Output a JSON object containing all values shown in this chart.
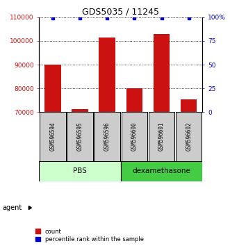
{
  "title": "GDS5035 / 11245",
  "samples": [
    "GSM596594",
    "GSM596595",
    "GSM596596",
    "GSM596600",
    "GSM596601",
    "GSM596602"
  ],
  "counts": [
    90000,
    71200,
    101500,
    80200,
    103000,
    75500
  ],
  "percentile_ranks": [
    99,
    99,
    99,
    99,
    99,
    99
  ],
  "groups": [
    {
      "label": "PBS",
      "color": "#b3ffb3",
      "darker": "#55cc55"
    },
    {
      "label": "dexamethasone",
      "color": "#55dd55",
      "darker": "#22aa22"
    }
  ],
  "bar_color": "#cc1111",
  "dot_color": "#0000cc",
  "left_ylim": [
    70000,
    110000
  ],
  "left_yticks": [
    70000,
    80000,
    90000,
    100000,
    110000
  ],
  "right_ylim": [
    0,
    100
  ],
  "right_yticks": [
    0,
    25,
    50,
    75,
    100
  ],
  "right_yticklabels": [
    "0",
    "25",
    "50",
    "75",
    "100%"
  ],
  "sample_box_color": "#cccccc",
  "pbs_color": "#ccffcc",
  "dexa_color": "#44cc44",
  "agent_label": "agent"
}
